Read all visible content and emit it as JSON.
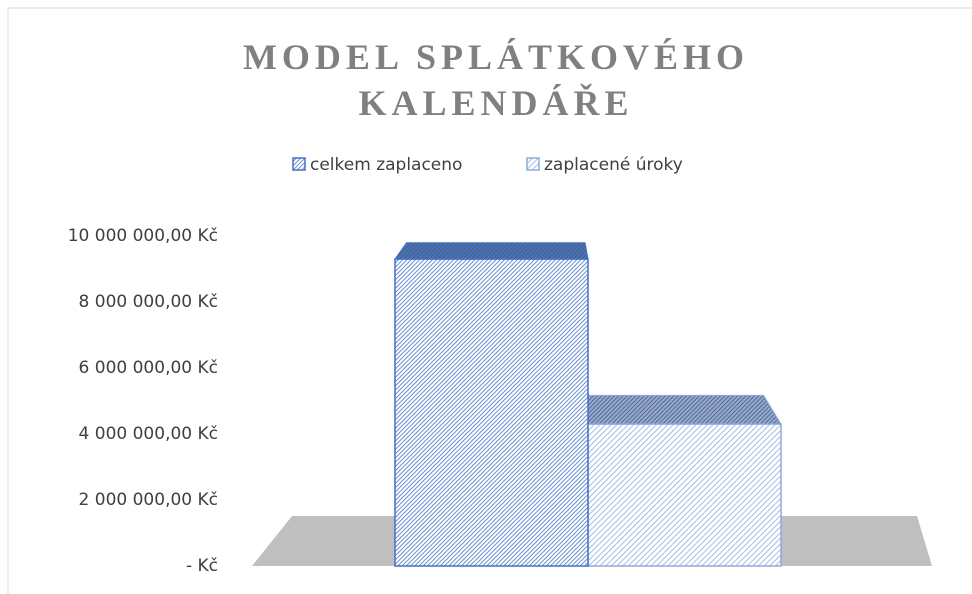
{
  "chart_data": {
    "type": "bar3d",
    "title": "MODEL SPLÁTKOVÉHO KALENDÁŘE",
    "categories": [
      null
    ],
    "series": [
      {
        "name": "celkem zaplaceno",
        "color": "#4472c4",
        "values": [
          9300000
        ]
      },
      {
        "name": "zaplacené úroky",
        "color": "#8faadc",
        "values": [
          4300000
        ]
      }
    ],
    "ylim": [
      0,
      10000000
    ],
    "yticks": [
      {
        "value": 0,
        "label": "-  Kč"
      },
      {
        "value": 2000000,
        "label": "2 000 000,00 Kč"
      },
      {
        "value": 4000000,
        "label": "4 000 000,00 Kč"
      },
      {
        "value": 6000000,
        "label": "6 000 000,00 Kč"
      },
      {
        "value": 8000000,
        "label": "8 000 000,00 Kč"
      },
      {
        "value": 10000000,
        "label": "10 000 000,00 Kč"
      }
    ],
    "legend": "top",
    "grid": false
  }
}
